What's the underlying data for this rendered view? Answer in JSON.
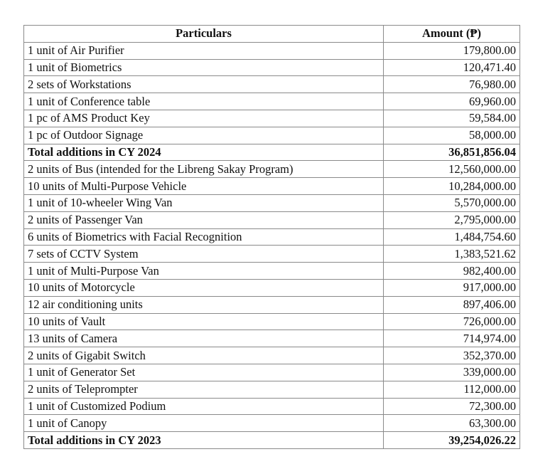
{
  "headers": {
    "particulars": "Particulars",
    "amount": "Amount (₱)"
  },
  "rows": [
    {
      "particular": "1 unit of Air Purifier",
      "amount": "179,800.00"
    },
    {
      "particular": "1 unit of Biometrics",
      "amount": "120,471.40"
    },
    {
      "particular": "2 sets of Workstations",
      "amount": "76,980.00"
    },
    {
      "particular": "1 unit of Conference table",
      "amount": "69,960.00"
    },
    {
      "particular": "1 pc of AMS Product Key",
      "amount": "59,584.00"
    },
    {
      "particular": "1 pc of Outdoor Signage",
      "amount": "58,000.00"
    },
    {
      "particular": "Total additions in CY 2024",
      "amount": "36,851,856.04",
      "total": true
    },
    {
      "particular": "2 units of Bus (intended for the Libreng Sakay Program)",
      "amount": "12,560,000.00"
    },
    {
      "particular": "10 units of Multi-Purpose Vehicle",
      "amount": "10,284,000.00"
    },
    {
      "particular": "1 unit of 10-wheeler Wing Van",
      "amount": "5,570,000.00"
    },
    {
      "particular": "2 units of Passenger Van",
      "amount": "2,795,000.00"
    },
    {
      "particular": "6 units of Biometrics with Facial Recognition",
      "amount": "1,484,754.60"
    },
    {
      "particular": "7 sets of CCTV System",
      "amount": "1,383,521.62"
    },
    {
      "particular": "1 unit of Multi-Purpose Van",
      "amount": "982,400.00"
    },
    {
      "particular": "10 units of Motorcycle",
      "amount": "917,000.00"
    },
    {
      "particular": "12 air conditioning units",
      "amount": "897,406.00"
    },
    {
      "particular": "10 units of Vault",
      "amount": "726,000.00"
    },
    {
      "particular": "13 units of Camera",
      "amount": "714,974.00"
    },
    {
      "particular": "2 units of Gigabit Switch",
      "amount": "352,370.00"
    },
    {
      "particular": "1 unit of Generator Set",
      "amount": "339,000.00"
    },
    {
      "particular": "2 units of Teleprompter",
      "amount": "112,000.00"
    },
    {
      "particular": "1 unit of Customized Podium",
      "amount": "72,300.00"
    },
    {
      "particular": "1 unit of Canopy",
      "amount": "63,300.00"
    },
    {
      "particular": "Total additions in CY 2023",
      "amount": "39,254,026.22",
      "total": true
    }
  ]
}
